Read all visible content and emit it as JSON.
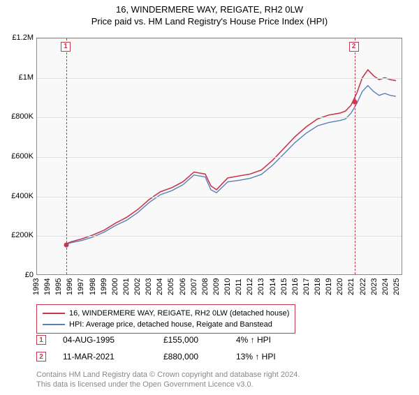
{
  "header": {
    "title": "16, WINDERMERE WAY, REIGATE, RH2 0LW",
    "subtitle": "Price paid vs. HM Land Registry's House Price Index (HPI)"
  },
  "chart": {
    "type": "line",
    "background_color": "#f9f9f9",
    "border_color": "#8a8a8a",
    "grid_color": "#e0e0e0",
    "ylim": [
      0,
      1200000
    ],
    "ytick_step": 200000,
    "y_ticks": [
      "£0",
      "£200K",
      "£400K",
      "£600K",
      "£800K",
      "£1M",
      "£1.2M"
    ],
    "x_ticks": [
      "1993",
      "1994",
      "1995",
      "1996",
      "1997",
      "1998",
      "1999",
      "2000",
      "2001",
      "2002",
      "2003",
      "2004",
      "2005",
      "2006",
      "2007",
      "2008",
      "2009",
      "2010",
      "2011",
      "2012",
      "2013",
      "2014",
      "2015",
      "2016",
      "2017",
      "2018",
      "2019",
      "2020",
      "2021",
      "2022",
      "2023",
      "2024",
      "2025"
    ],
    "series": [
      {
        "name": "price_paid",
        "color": "#c7384d",
        "width": 1.6,
        "data": [
          [
            1995.6,
            155000
          ],
          [
            1996,
            165000
          ],
          [
            1997,
            180000
          ],
          [
            1998,
            200000
          ],
          [
            1999,
            225000
          ],
          [
            2000,
            260000
          ],
          [
            2001,
            290000
          ],
          [
            2002,
            330000
          ],
          [
            2003,
            380000
          ],
          [
            2004,
            420000
          ],
          [
            2005,
            440000
          ],
          [
            2006,
            470000
          ],
          [
            2007,
            520000
          ],
          [
            2008,
            510000
          ],
          [
            2008.5,
            450000
          ],
          [
            2009,
            430000
          ],
          [
            2009.5,
            460000
          ],
          [
            2010,
            490000
          ],
          [
            2011,
            500000
          ],
          [
            2012,
            510000
          ],
          [
            2013,
            530000
          ],
          [
            2014,
            580000
          ],
          [
            2015,
            640000
          ],
          [
            2016,
            700000
          ],
          [
            2017,
            750000
          ],
          [
            2018,
            790000
          ],
          [
            2019,
            810000
          ],
          [
            2020,
            820000
          ],
          [
            2020.5,
            830000
          ],
          [
            2021,
            860000
          ],
          [
            2021.5,
            920000
          ],
          [
            2022,
            1000000
          ],
          [
            2022.5,
            1040000
          ],
          [
            2023,
            1010000
          ],
          [
            2023.5,
            990000
          ],
          [
            2024,
            1000000
          ],
          [
            2024.5,
            990000
          ],
          [
            2025,
            985000
          ]
        ]
      },
      {
        "name": "hpi",
        "color": "#5a7fb8",
        "width": 1.4,
        "data": [
          [
            1995.6,
            152000
          ],
          [
            1996,
            160000
          ],
          [
            1997,
            172000
          ],
          [
            1998,
            190000
          ],
          [
            1999,
            215000
          ],
          [
            2000,
            248000
          ],
          [
            2001,
            275000
          ],
          [
            2002,
            315000
          ],
          [
            2003,
            365000
          ],
          [
            2004,
            405000
          ],
          [
            2005,
            425000
          ],
          [
            2006,
            455000
          ],
          [
            2007,
            505000
          ],
          [
            2008,
            495000
          ],
          [
            2008.5,
            430000
          ],
          [
            2009,
            415000
          ],
          [
            2009.5,
            442000
          ],
          [
            2010,
            470000
          ],
          [
            2011,
            478000
          ],
          [
            2012,
            488000
          ],
          [
            2013,
            508000
          ],
          [
            2014,
            555000
          ],
          [
            2015,
            612000
          ],
          [
            2016,
            670000
          ],
          [
            2017,
            718000
          ],
          [
            2018,
            755000
          ],
          [
            2019,
            772000
          ],
          [
            2020,
            782000
          ],
          [
            2020.5,
            790000
          ],
          [
            2021,
            820000
          ],
          [
            2021.5,
            868000
          ],
          [
            2022,
            930000
          ],
          [
            2022.5,
            960000
          ],
          [
            2023,
            930000
          ],
          [
            2023.5,
            910000
          ],
          [
            2024,
            920000
          ],
          [
            2024.5,
            910000
          ],
          [
            2025,
            905000
          ]
        ]
      }
    ],
    "markers": [
      {
        "id": "1",
        "x": 1995.6,
        "y": 155000
      },
      {
        "id": "2",
        "x": 2021.2,
        "y": 880000
      }
    ]
  },
  "legend": {
    "items": [
      {
        "color": "#c7384d",
        "label": "16, WINDERMERE WAY, REIGATE, RH2 0LW (detached house)"
      },
      {
        "color": "#5a7fb8",
        "label": "HPI: Average price, detached house, Reigate and Banstead"
      }
    ]
  },
  "transactions": [
    {
      "marker": "1",
      "date": "04-AUG-1995",
      "price": "£155,000",
      "pct": "4% ↑ HPI"
    },
    {
      "marker": "2",
      "date": "11-MAR-2021",
      "price": "£880,000",
      "pct": "13% ↑ HPI"
    }
  ],
  "footer": {
    "line1": "Contains HM Land Registry data © Crown copyright and database right 2024.",
    "line2": "This data is licensed under the Open Government Licence v3.0."
  }
}
